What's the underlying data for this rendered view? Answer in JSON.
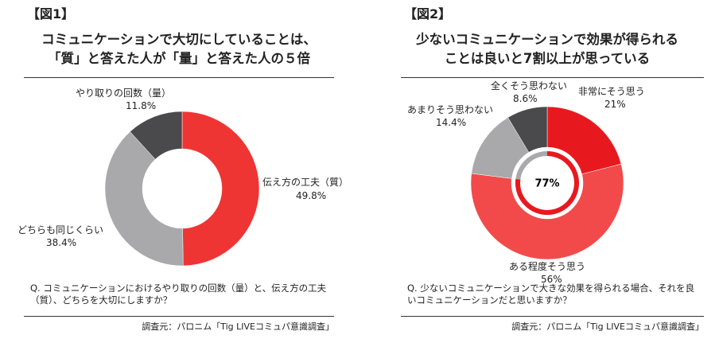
{
  "chart_data": [
    {
      "type": "donut",
      "label": "【図1】",
      "title": [
        "コミュニケーションで大切にしていることは、",
        "「質」と答えた人が「量」と答えた人の５倍"
      ],
      "categories": [
        "伝え方の工夫（質）",
        "どちらも同じくらい",
        "やり取りの回数（量）"
      ],
      "values": [
        49.8,
        38.4,
        11.8
      ],
      "value_labels": [
        "49.8%",
        "38.4%",
        "11.8%"
      ],
      "colors": [
        "#ef3434",
        "#a9a8aa",
        "#4a494b"
      ],
      "question": "Q. コミュニケーションにおけるやり取りの回数（量）と、伝え方の工夫（質）、どちらを大切にしますか？",
      "source": "調査元：パロニム「Tig LIVEコミュパ意識調査」"
    },
    {
      "type": "donut",
      "label": "【図2】",
      "title": [
        "少ないコミュニケーションで効果が得られる",
        "ことは良いと7割以上が思っている"
      ],
      "categories": [
        "非常にそう思う",
        "ある程度そう思う",
        "あまりそう思わない",
        "全くそう思わない"
      ],
      "values": [
        21,
        56,
        14.4,
        8.6
      ],
      "value_labels": [
        "21%",
        "56%",
        "14.4%",
        "8.6%"
      ],
      "colors": [
        "#e8191e",
        "#f24a4a",
        "#a9a8aa",
        "#4a494b"
      ],
      "center_value": 77,
      "center_label": "77%",
      "question": "Q. 少ないコミュニケーションで大きな効果を得られる場合、それを良いコミュニケーションだと思いますか？",
      "source": "調査元：パロニム「Tig LIVEコミュパ意識調査」"
    }
  ]
}
